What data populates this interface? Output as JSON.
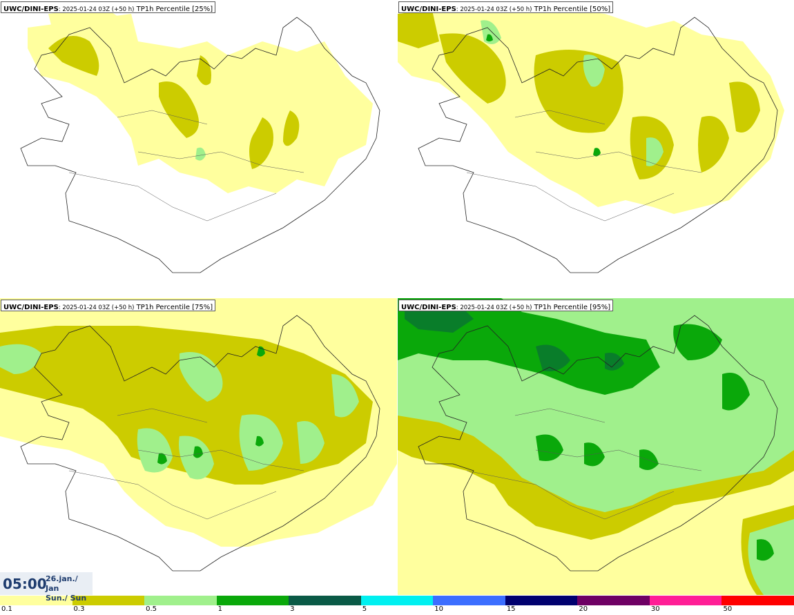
{
  "panels": [
    {
      "model": "UWC/DINI-EPS",
      "run": ": 2025-01-24 03Z (+50 h)",
      "param": " TP1h Percentile [25%]"
    },
    {
      "model": "UWC/DINI-EPS",
      "run": ": 2025-01-24 03Z (+50 h)",
      "param": " TP1h Percentile [50%]"
    },
    {
      "model": "UWC/DINI-EPS",
      "run": ": 2025-01-24 03Z (+50 h)",
      "param": " TP1h Percentile [75%]"
    },
    {
      "model": "UWC/DINI-EPS",
      "run": ": 2025-01-24 03Z (+50 h)",
      "param": " TP1h Percentile [95%]"
    }
  ],
  "valid_time": {
    "time": "05:00",
    "date_line1": "26.jan./ Jan",
    "date_line2": "Sun./ Sun"
  },
  "legend": {
    "colors": [
      "#ffff9e",
      "#cccc00",
      "#a0f08c",
      "#0aa80a",
      "#0a5a46",
      "#00f0f0",
      "#3c6eff",
      "#00006e",
      "#6e0064",
      "#ff1e96",
      "#ff0000"
    ],
    "ticks": [
      "0.1",
      "0.3",
      "0.5",
      "1",
      "3",
      "5",
      "10",
      "15",
      "20",
      "30",
      "50"
    ]
  }
}
